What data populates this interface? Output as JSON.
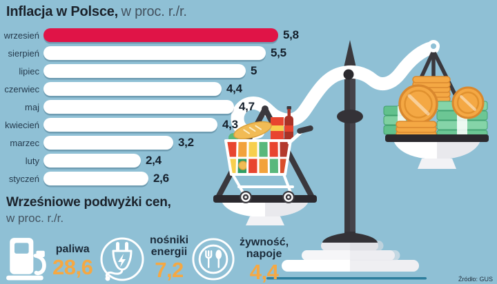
{
  "title": {
    "main": "Inflacja w Polsce,",
    "suffix": "w proc. r./r."
  },
  "chart_data": {
    "type": "bar",
    "orientation": "horizontal",
    "title": "Inflacja w Polsce, w proc. r./r.",
    "categories": [
      "wrzesień",
      "sierpień",
      "lipiec",
      "czerwiec",
      "maj",
      "kwiecień",
      "marzec",
      "luty",
      "styczeń"
    ],
    "values": [
      5.8,
      5.5,
      5.0,
      4.4,
      4.7,
      4.3,
      3.2,
      2.4,
      2.6
    ],
    "value_labels": [
      "5,8",
      "5,5",
      "5",
      "4,4",
      "4,7",
      "4,3",
      "3,2",
      "2,4",
      "2,6"
    ],
    "xlim": [
      0,
      5.8
    ],
    "highlight_index": 0,
    "highlight_color": "#e01447",
    "bar_color": "#ffffff",
    "grid": false,
    "legend": "none"
  },
  "section2": {
    "heading": "Wrześniowe podwyżki cen,",
    "subheading": "w proc. r./r.",
    "stats": [
      {
        "icon": "fuel-pump-icon",
        "label": "paliwa",
        "label_lines": [
          "paliwa"
        ],
        "value": "28,6"
      },
      {
        "icon": "power-plug-icon",
        "label": "nośniki energii",
        "label_lines": [
          "nośniki",
          "energii"
        ],
        "value": "7,2"
      },
      {
        "icon": "cutlery-plate-icon",
        "label": "żywność, napoje",
        "label_lines": [
          "żywność,",
          "napoje"
        ],
        "value": "4,4"
      }
    ]
  },
  "source": "Źródło: GUS",
  "colors": {
    "background": "#8fc0d5",
    "highlight_bar": "#e01447",
    "bar": "#ffffff",
    "dark_text": "#1b222b",
    "muted_text": "#43525f",
    "accent_value": "#f5a843",
    "scale_dark": "#3a383d",
    "ground_line": "#2e7e9d",
    "coin_gold": "#f4a844",
    "banknote_green": "#6cc694"
  },
  "illustration": {
    "name": "balance-scale-groceries-vs-money"
  }
}
